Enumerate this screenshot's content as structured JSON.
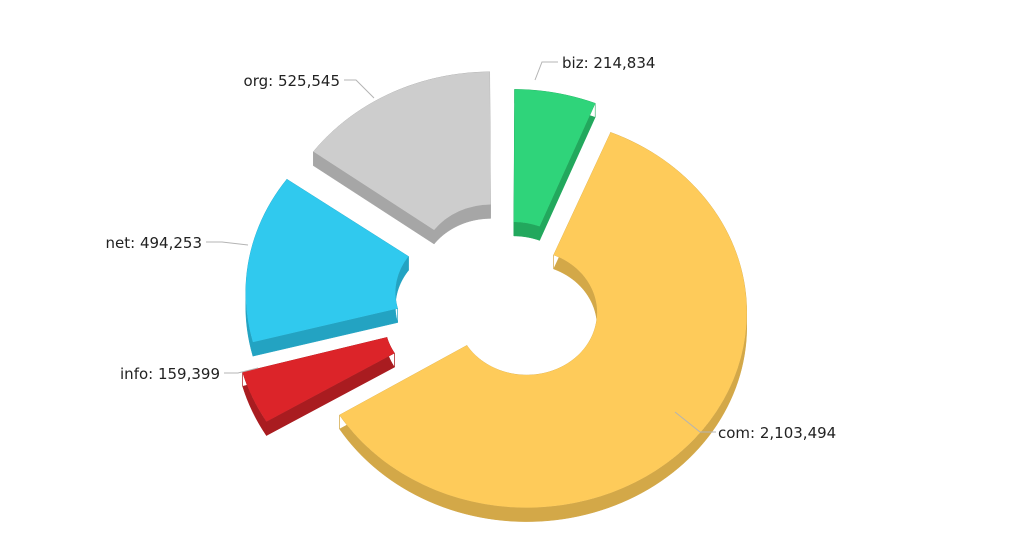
{
  "chart_data": {
    "type": "pie",
    "variant": "3d-donut-exploded",
    "slices": [
      {
        "name": "biz",
        "value": 214834,
        "value_label": "214,834",
        "color": "#2fd47a",
        "side_color": "#22a85d"
      },
      {
        "name": "com",
        "value": 2103494,
        "value_label": "2,103,494",
        "color": "#fecb5a",
        "side_color": "#d3a848"
      },
      {
        "name": "info",
        "value": 159399,
        "value_label": "159,399",
        "color": "#dc2429",
        "side_color": "#a91c20"
      },
      {
        "name": "net",
        "value": 494253,
        "value_label": "494,253",
        "color": "#30c9ee",
        "side_color": "#23a3c2"
      },
      {
        "name": "org",
        "value": 525545,
        "value_label": "525,545",
        "color": "#cdcdcd",
        "side_color": "#a6a6a6"
      }
    ],
    "label_separator": ": ",
    "leader_color": "#b4b4b4",
    "text_color": "#222222"
  }
}
